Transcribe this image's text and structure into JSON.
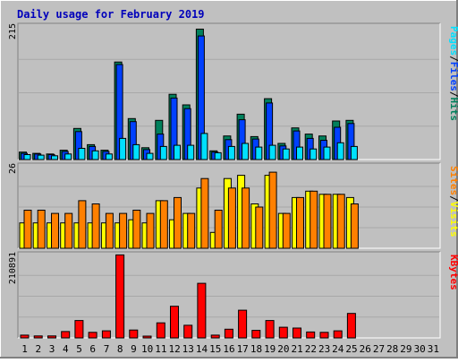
{
  "chart_data": {
    "type": "bar",
    "title": "Daily usage for February 2019",
    "categories": [
      "1",
      "2",
      "3",
      "4",
      "5",
      "6",
      "7",
      "8",
      "9",
      "10",
      "11",
      "12",
      "13",
      "14",
      "15",
      "16",
      "17",
      "18",
      "19",
      "20",
      "21",
      "22",
      "23",
      "24",
      "25",
      "26",
      "27",
      "28",
      "29",
      "30",
      "31"
    ],
    "weekend_days": [
      "2",
      "3",
      "9",
      "10",
      "16",
      "17",
      "23",
      "24",
      "30",
      "31"
    ],
    "colors": {
      "hits": "#00805c",
      "files": "#0040ff",
      "pages": "#00e0ff",
      "visits": "#ffff00",
      "sites": "#ff8000",
      "kbytes": "#ff0000",
      "weekend_label": "#008040",
      "title": "#0000bb"
    },
    "panels": [
      {
        "id": "traffic",
        "max_label": "215",
        "ylim": [
          0,
          215
        ],
        "legend": [
          "Pages",
          "/",
          "Files",
          "/",
          "Hits"
        ],
        "series": [
          {
            "name": "Hits",
            "values": [
              12,
              10,
              9,
              15,
              50,
              24,
              15,
              157,
              66,
              19,
              63,
              105,
              88,
              210,
              14,
              38,
              73,
              37,
              98,
              26,
              51,
              41,
              38,
              62,
              63,
              0,
              0,
              0,
              0,
              0,
              0
            ]
          },
          {
            "name": "Files",
            "values": [
              10,
              9,
              8,
              13,
              45,
              21,
              13,
              153,
              61,
              16,
              41,
              99,
              82,
              199,
              12,
              32,
              64,
              33,
              91,
              22,
              46,
              34,
              31,
              52,
              58,
              0,
              0,
              0,
              0,
              0,
              0
            ]
          },
          {
            "name": "Pages",
            "values": [
              8,
              7,
              6,
              9,
              18,
              14,
              9,
              34,
              24,
              10,
              21,
              23,
              23,
              42,
              11,
              21,
              26,
              20,
              23,
              17,
              20,
              17,
              20,
              27,
              21,
              0,
              0,
              0,
              0,
              0,
              0
            ]
          }
        ]
      },
      {
        "id": "visitors",
        "max_label": "26",
        "ylim": [
          0,
          26
        ],
        "legend": [
          "Sites",
          "/",
          "Visits"
        ],
        "series": [
          {
            "name": "Visits",
            "values": [
              8,
              8,
              8,
              8,
              8,
              8,
              8,
              8,
              9,
              8,
              15,
              9,
              11,
              19,
              5,
              22,
              23,
              14,
              23,
              11,
              16,
              18,
              17,
              17,
              16,
              0,
              0,
              0,
              0,
              0,
              0
            ]
          },
          {
            "name": "Sites",
            "values": [
              12,
              12,
              11,
              11,
              15,
              14,
              11,
              11,
              12,
              11,
              15,
              16,
              11,
              22,
              12,
              19,
              19,
              13,
              24,
              11,
              16,
              18,
              17,
              17,
              14,
              0,
              0,
              0,
              0,
              0,
              0
            ]
          }
        ]
      },
      {
        "id": "kbytes",
        "max_label": "210891",
        "ylim": [
          0,
          210891
        ],
        "legend": [
          "KBytes"
        ],
        "series": [
          {
            "name": "KBytes",
            "values": [
              7000,
              5000,
              5000,
              16000,
              44000,
              14000,
              18000,
              210000,
              20000,
              4000,
              38000,
              80000,
              32000,
              138000,
              7000,
              22000,
              70000,
              19000,
              44000,
              27000,
              25000,
              15000,
              14000,
              18000,
              62000,
              0,
              0,
              0,
              0,
              0,
              0
            ]
          }
        ]
      }
    ]
  }
}
